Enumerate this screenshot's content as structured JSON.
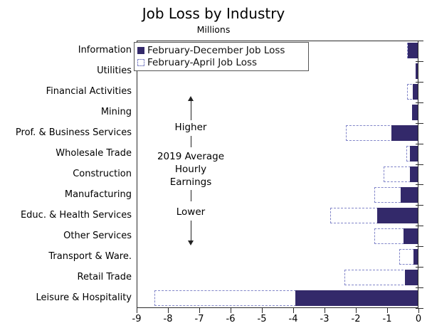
{
  "title": "Job Loss by Industry",
  "subtitle": "Millions",
  "legend": {
    "series1_label": "February-December Job Loss",
    "series2_label": "February-April Job Loss"
  },
  "annotation": {
    "higher": "Higher",
    "middle_lines": [
      "2019 Average",
      "Hourly",
      "Earnings"
    ],
    "lower": "Lower"
  },
  "colors": {
    "solid_bar": "#33296a",
    "dashed_outline": "#8286c9",
    "axis": "#2b2b2b",
    "text": "#000000"
  },
  "chart_data": {
    "type": "bar",
    "orientation": "horizontal",
    "title": "Job Loss by Industry",
    "subtitle": "Millions",
    "xlabel": "",
    "ylabel": "",
    "xlim": [
      -9,
      0
    ],
    "x_ticks": [
      "-9",
      "-8",
      "-7",
      "-6",
      "-5",
      "-4",
      "-3",
      "-2",
      "-1",
      "0"
    ],
    "grid": false,
    "legend_position": "upper-left-inside",
    "categories": [
      "Information",
      "Utilities",
      "Financial Activities",
      "Mining",
      "Prof. & Business Services",
      "Wholesale Trade",
      "Construction",
      "Manufacturing",
      "Educ. & Health Services",
      "Other Services",
      "Transport & Ware.",
      "Retail Trade",
      "Leisure & Hospitality"
    ],
    "series": [
      {
        "name": "February-December Job Loss",
        "style": "solid",
        "values": [
          -0.31,
          -0.06,
          -0.15,
          -0.19,
          -0.85,
          -0.25,
          -0.25,
          -0.55,
          -1.3,
          -0.45,
          -0.13,
          -0.4,
          -3.92
        ]
      },
      {
        "name": "February-April Job Loss",
        "style": "dashed",
        "values": [
          -0.33,
          -0.07,
          -0.35,
          -0.1,
          -2.3,
          -0.36,
          -1.1,
          -1.38,
          -2.8,
          -1.38,
          -0.58,
          -2.35,
          -8.4
        ]
      }
    ]
  }
}
